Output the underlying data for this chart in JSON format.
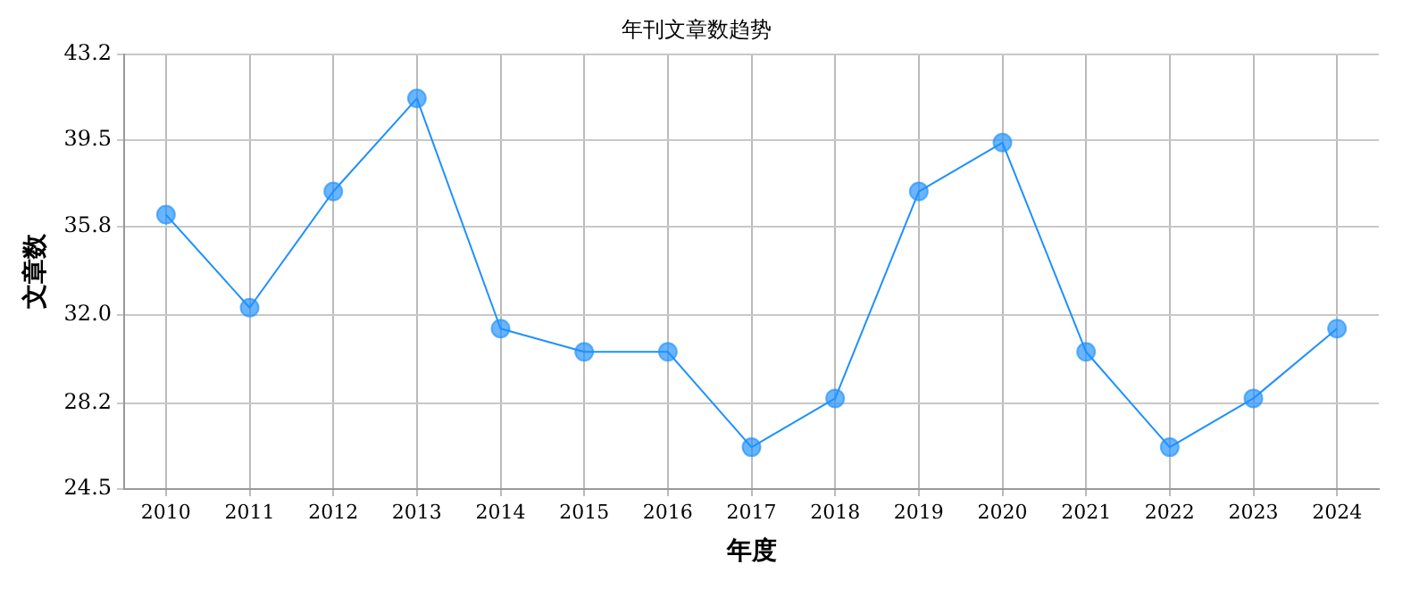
{
  "chart_data": {
    "type": "line",
    "title": "年刊文章数趋势",
    "xlabel": "年度",
    "ylabel": "文章数",
    "categories": [
      "2010",
      "2011",
      "2012",
      "2013",
      "2014",
      "2015",
      "2016",
      "2017",
      "2018",
      "2019",
      "2020",
      "2021",
      "2022",
      "2023",
      "2024"
    ],
    "series": [
      {
        "color": "#1e90ff",
        "values": [
          36.3,
          32.3,
          37.3,
          41.3,
          31.4,
          30.4,
          30.4,
          26.3,
          28.4,
          37.3,
          39.4,
          30.4,
          26.3,
          28.4,
          31.4
        ]
      }
    ],
    "ylim": [
      24.5,
      43.2
    ],
    "yticks": [
      24.5,
      28.2,
      {
        "value": 32,
        "label": "32.0"
      },
      35.8,
      39.5,
      43.2
    ],
    "grid": true,
    "marker": "circle",
    "line_style": "solid",
    "legend": false
  }
}
